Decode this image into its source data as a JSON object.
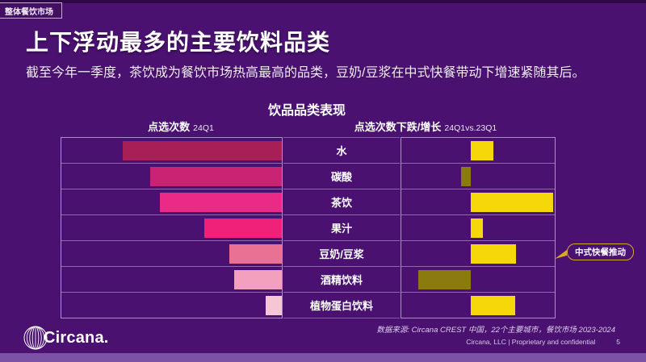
{
  "page": {
    "tag": "整体餐饮市场",
    "title": "上下浮动最多的主要饮料品类",
    "subtitle": "截至今年一季度，茶饮成为餐饮市场热高最高的品类，豆奶/豆浆在中式快餐带动下增速紧随其后。"
  },
  "chart_data": {
    "type": "bar",
    "orientation": "horizontal",
    "title": "饮品品类表现",
    "categories": [
      "水",
      "碳酸",
      "茶饮",
      "果汁",
      "豆奶/豆浆",
      "酒精饮料",
      "植物蛋白饮料"
    ],
    "grid": "row separator lines, no numeric axis labels shown",
    "legend": "none",
    "panels": [
      {
        "name": "点选次数",
        "period": "24Q1",
        "style": "right-anchored bars, values estimated relative to largest bar (水 = 100)",
        "values": [
          100,
          83,
          77,
          49,
          33,
          30,
          10
        ],
        "bar_colors": [
          "#A81E56",
          "#C92374",
          "#EA2A84",
          "#EF2179",
          "#E97194",
          "#F2A0BE",
          "#F6C6D6"
        ]
      },
      {
        "name": "点选次数下跌/增长",
        "period": "24Q1vs.23Q1",
        "style": "diverging bars from center baseline, values estimated relative to largest gain (茶饮 = 100)",
        "values": [
          27,
          -12,
          100,
          15,
          55,
          -64,
          54
        ],
        "positive_color": "#F5D80A",
        "negative_color": "#8A7A10"
      }
    ],
    "annotation": {
      "text": "中式快餐推动",
      "target": "豆奶/豆浆"
    }
  },
  "footer": {
    "source": "数据来源: Circana CREST 中国，22个主要城市，餐饮市场 2023-2024",
    "confidential": "Circana, LLC  |  Proprietary and confidential",
    "page_number": "5",
    "logo_text": "Circana."
  },
  "colors": {
    "background": "#4A1170",
    "top_strip": "#2D0845",
    "footer_strip": "#7B52A5",
    "callout_border": "#D9A72A",
    "gridline": "rgba(200,178,226,0.55)"
  }
}
